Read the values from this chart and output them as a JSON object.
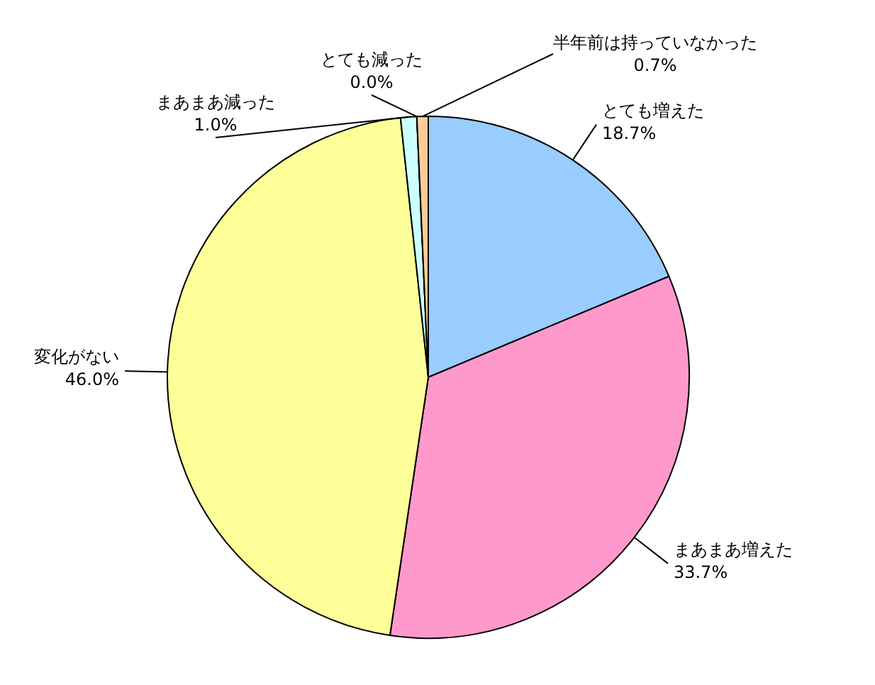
{
  "chart_data": {
    "type": "pie",
    "categories": [
      "とても増えた",
      "まあまあ増えた",
      "変化がない",
      "まあまあ減った",
      "とても減った",
      "半年前は持っていなかった"
    ],
    "values": [
      18.7,
      33.7,
      46.0,
      1.0,
      0.0,
      0.7
    ],
    "value_labels": [
      "18.7%",
      "33.7%",
      "46.0%",
      "1.0%",
      "0.0%",
      "0.7%"
    ],
    "colors": [
      "#99ccff",
      "#ff99cc",
      "#ffff99",
      "#ccffff",
      "#ff8080",
      "#ffcc99"
    ],
    "legend": false
  }
}
